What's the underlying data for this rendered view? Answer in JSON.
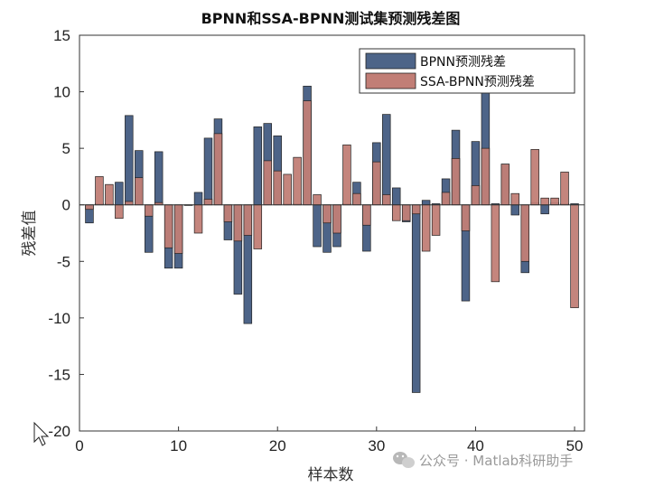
{
  "chart_data": {
    "type": "bar",
    "title": "BPNN和SSA-BPNN测试集预测残差图",
    "xlabel": "样本数",
    "ylabel": "残差值",
    "xlim": [
      0,
      51
    ],
    "ylim": [
      -20,
      15
    ],
    "xticks": [
      "0",
      "10",
      "20",
      "30",
      "40",
      "50"
    ],
    "yticks": [
      "15",
      "10",
      "5",
      "0",
      "-5",
      "-10",
      "-15",
      "-20"
    ],
    "x": [
      1,
      2,
      3,
      4,
      5,
      6,
      7,
      8,
      9,
      10,
      11,
      12,
      13,
      14,
      15,
      16,
      17,
      18,
      19,
      20,
      21,
      22,
      23,
      24,
      25,
      26,
      27,
      28,
      29,
      30,
      31,
      32,
      33,
      34,
      35,
      36,
      37,
      38,
      39,
      40,
      41,
      42,
      43,
      44,
      45,
      46,
      47,
      48,
      49,
      50
    ],
    "legend_position": "top-right",
    "series": [
      {
        "name": "BPNN预测残差",
        "color": "#4d6488",
        "values": [
          -1.6,
          0.1,
          0.1,
          2.0,
          7.9,
          4.8,
          -4.2,
          4.7,
          -5.6,
          -5.6,
          0.0,
          1.1,
          5.9,
          7.6,
          -3.1,
          -7.9,
          -10.5,
          6.9,
          7.2,
          6.1,
          0.1,
          0.1,
          10.5,
          -3.7,
          -4.2,
          -3.7,
          0.1,
          2.0,
          -4.1,
          5.5,
          8.0,
          1.5,
          -1.5,
          -16.6,
          0.4,
          0.1,
          2.3,
          6.6,
          -8.5,
          5.6,
          10.9,
          0.1,
          3.6,
          -0.9,
          -6.0,
          0.2,
          -0.8,
          0.2,
          0.1,
          0.1
        ]
      },
      {
        "name": "SSA-BPNN预测残差",
        "color": "#c17e76",
        "values": [
          -0.4,
          2.5,
          1.8,
          -1.2,
          0.3,
          2.4,
          -1.0,
          0.2,
          -3.8,
          -4.3,
          0.0,
          -2.5,
          0.5,
          6.3,
          -1.5,
          -3.2,
          -2.7,
          -3.9,
          3.9,
          3.0,
          2.7,
          4.2,
          9.2,
          0.9,
          -1.6,
          -2.5,
          5.3,
          1.0,
          -1.8,
          3.8,
          0.9,
          -1.4,
          -1.4,
          -0.8,
          -4.1,
          -2.7,
          1.1,
          4.1,
          -2.3,
          1.7,
          5.0,
          -6.8,
          3.6,
          1.0,
          -5.0,
          4.9,
          0.6,
          0.6,
          2.9,
          -9.1
        ]
      }
    ]
  },
  "watermark": {
    "text": "公众号 · Matlab科研助手",
    "icon": "wechat-icon"
  }
}
